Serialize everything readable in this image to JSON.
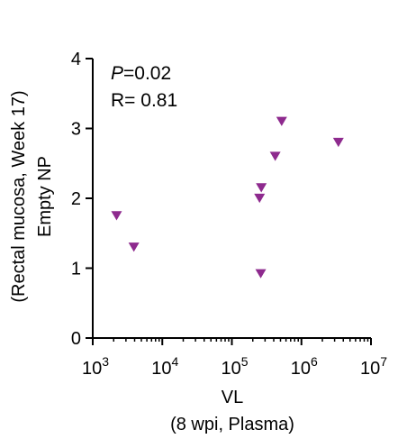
{
  "chart_data": {
    "type": "scatter",
    "xlabel": [
      "VL",
      "(8 wpi, Plasma)"
    ],
    "ylabel": [
      "(Rectal mucosa, Week 17)",
      "Empty NP"
    ],
    "x_scale": "log",
    "xlim": [
      1000,
      10000000
    ],
    "ylim": [
      0,
      4
    ],
    "x_ticks": [
      {
        "value": 1000,
        "base": "10",
        "exp": "3"
      },
      {
        "value": 10000,
        "base": "10",
        "exp": "4"
      },
      {
        "value": 100000,
        "base": "10",
        "exp": "5"
      },
      {
        "value": 1000000,
        "base": "10",
        "exp": "6"
      },
      {
        "value": 10000000,
        "base": "10",
        "exp": "7"
      }
    ],
    "y_ticks": [
      0,
      1,
      2,
      3,
      4
    ],
    "annotation": {
      "p_symbol": "P",
      "p_value": "=0.02",
      "r_text": "R= 0.81"
    },
    "marker": {
      "shape": "triangle-down",
      "color": "#8e2a8e"
    },
    "points": [
      {
        "x": 2200,
        "y": 1.75
      },
      {
        "x": 3900,
        "y": 1.3
      },
      {
        "x": 250000,
        "y": 2.0
      },
      {
        "x": 265000,
        "y": 2.15
      },
      {
        "x": 260000,
        "y": 0.92
      },
      {
        "x": 420000,
        "y": 2.6
      },
      {
        "x": 520000,
        "y": 3.1
      },
      {
        "x": 3400000,
        "y": 2.8
      }
    ]
  }
}
